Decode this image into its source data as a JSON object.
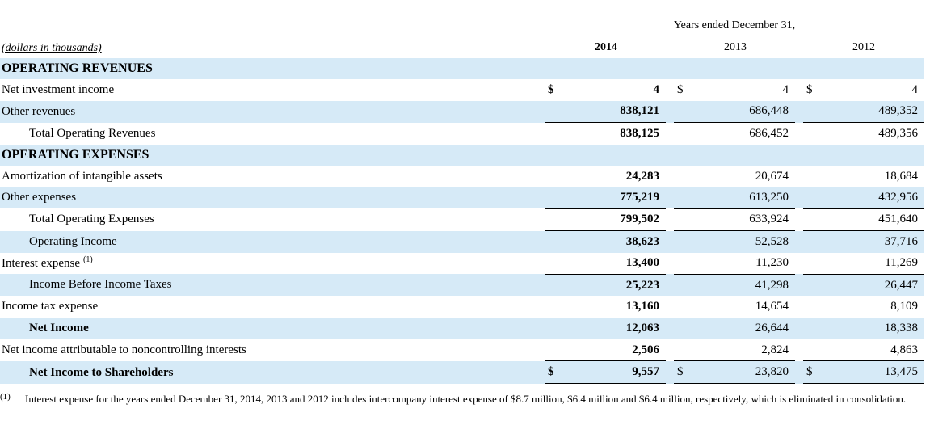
{
  "header": {
    "years_caption": "Years ended December 31,",
    "units_note": "(dollars in thousands)",
    "columns": [
      "2014",
      "2013",
      "2012"
    ]
  },
  "rows": [
    {
      "label": "OPERATING REVENUES",
      "style": "section",
      "c14": "",
      "c13": "",
      "c12": ""
    },
    {
      "label": "Net investment income",
      "style": "normal",
      "cur14": "$",
      "c14": "4",
      "cur13": "$",
      "c13": "4",
      "cur12": "$",
      "c12": "4"
    },
    {
      "label": "Other revenues",
      "style": "normal",
      "c14": "838,121",
      "c13": "686,448",
      "c12": "489,352"
    },
    {
      "label": "Total Operating Revenues",
      "style": "indent",
      "c14": "838,125",
      "c13": "686,452",
      "c12": "489,356"
    },
    {
      "label": "OPERATING EXPENSES",
      "style": "section",
      "c14": "",
      "c13": "",
      "c12": ""
    },
    {
      "label": "Amortization of intangible assets",
      "style": "normal",
      "c14": "24,283",
      "c13": "20,674",
      "c12": "18,684"
    },
    {
      "label": "Other expenses",
      "style": "normal",
      "c14": "775,219",
      "c13": "613,250",
      "c12": "432,956"
    },
    {
      "label": "Total Operating Expenses",
      "style": "indent",
      "c14": "799,502",
      "c13": "633,924",
      "c12": "451,640"
    },
    {
      "label": "Operating Income",
      "style": "indent",
      "c14": "38,623",
      "c13": "52,528",
      "c12": "37,716"
    },
    {
      "label": "Interest expense",
      "sup": "(1)",
      "style": "normal",
      "c14": "13,400",
      "c13": "11,230",
      "c12": "11,269"
    },
    {
      "label": "Income Before Income Taxes",
      "style": "indent",
      "c14": "25,223",
      "c13": "41,298",
      "c12": "26,447"
    },
    {
      "label": "Income tax expense",
      "style": "normal",
      "c14": "13,160",
      "c13": "14,654",
      "c12": "8,109"
    },
    {
      "label": "Net Income",
      "style": "indent-bold",
      "c14": "12,063",
      "c13": "26,644",
      "c12": "18,338"
    },
    {
      "label": "Net income attributable to noncontrolling interests",
      "style": "normal",
      "c14": "2,506",
      "c13": "2,824",
      "c12": "4,863"
    },
    {
      "label": "Net Income to Shareholders",
      "style": "indent-bold",
      "cur14": "$",
      "c14": "9,557",
      "cur13": "$",
      "c13": "23,820",
      "cur12": "$",
      "c12": "13,475"
    }
  ],
  "footnote": {
    "marker": "(1)",
    "text": "Interest expense for the years ended December 31, 2014, 2013 and 2012 includes intercompany interest expense of $8.7 million, $6.4 million and $6.4 million, respectively, which is eliminated in consolidation."
  }
}
